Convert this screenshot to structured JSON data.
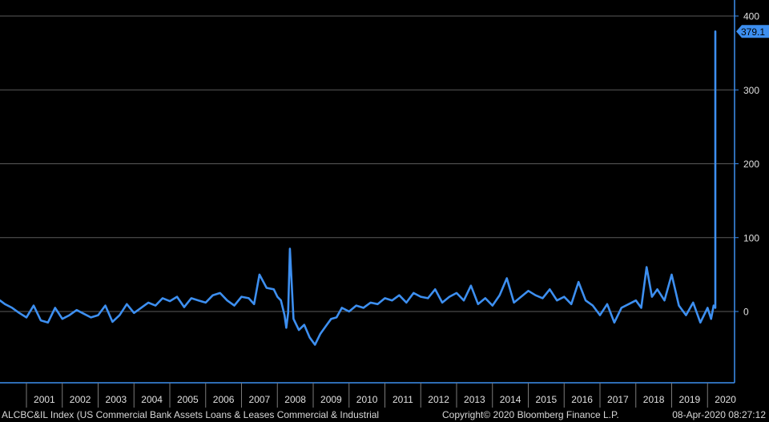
{
  "chart_data": {
    "type": "line",
    "title": "",
    "xlabel": "",
    "ylabel": "",
    "x_tick_labels": [
      "2001",
      "2002",
      "2003",
      "2004",
      "2005",
      "2006",
      "2007",
      "2008",
      "2009",
      "2010",
      "2011",
      "2012",
      "2013",
      "2014",
      "2015",
      "2016",
      "2017",
      "2018",
      "2019",
      "2020"
    ],
    "y_ticks": [
      0,
      100,
      200,
      300,
      400
    ],
    "ylim": [
      -90,
      420
    ],
    "xlim": [
      2000.2,
      2020.75
    ],
    "grid": "horizontal",
    "line_color": "#3d8ff0",
    "last_value_label": "379.1",
    "series": [
      {
        "x": [
          2000.2,
          2000.4,
          2000.6,
          2000.8,
          2001.0,
          2001.2,
          2001.4,
          2001.6,
          2001.8,
          2002.0,
          2002.2,
          2002.4,
          2002.6,
          2002.8,
          2003.0,
          2003.2,
          2003.4,
          2003.6,
          2003.8,
          2004.0,
          2004.2,
          2004.4,
          2004.6,
          2004.8,
          2005.0,
          2005.2,
          2005.4,
          2005.6,
          2005.8,
          2006.0,
          2006.2,
          2006.4,
          2006.6,
          2006.8,
          2007.0,
          2007.2,
          2007.35,
          2007.5,
          2007.7,
          2007.9,
          2008.0,
          2008.1,
          2008.2,
          2008.25,
          2008.3,
          2008.35,
          2008.45,
          2008.6,
          2008.75,
          2008.9,
          2009.05,
          2009.2,
          2009.35,
          2009.5,
          2009.65,
          2009.8,
          2010.0,
          2010.2,
          2010.4,
          2010.6,
          2010.8,
          2011.0,
          2011.2,
          2011.4,
          2011.6,
          2011.8,
          2012.0,
          2012.2,
          2012.4,
          2012.6,
          2012.8,
          2013.0,
          2013.2,
          2013.4,
          2013.6,
          2013.8,
          2014.0,
          2014.2,
          2014.4,
          2014.6,
          2014.8,
          2015.0,
          2015.2,
          2015.4,
          2015.6,
          2015.8,
          2016.0,
          2016.2,
          2016.4,
          2016.6,
          2016.8,
          2017.0,
          2017.2,
          2017.4,
          2017.6,
          2017.8,
          2018.0,
          2018.15,
          2018.3,
          2018.45,
          2018.6,
          2018.8,
          2019.0,
          2019.2,
          2019.4,
          2019.6,
          2019.8,
          2020.0,
          2020.1,
          2020.17,
          2020.22,
          2020.25
        ],
        "values": [
          15,
          10,
          5,
          -2,
          -8,
          8,
          -12,
          -15,
          5,
          -10,
          -5,
          2,
          -3,
          -8,
          -5,
          8,
          -14,
          -5,
          10,
          -2,
          5,
          12,
          8,
          18,
          14,
          20,
          6,
          18,
          15,
          12,
          22,
          25,
          15,
          8,
          20,
          18,
          10,
          50,
          32,
          30,
          20,
          15,
          -5,
          -22,
          -2,
          85,
          -10,
          -25,
          -18,
          -35,
          -45,
          -30,
          -20,
          -10,
          -8,
          5,
          0,
          8,
          5,
          12,
          10,
          18,
          15,
          22,
          12,
          25,
          20,
          18,
          30,
          12,
          20,
          25,
          15,
          35,
          10,
          18,
          8,
          22,
          45,
          12,
          20,
          28,
          22,
          18,
          30,
          15,
          20,
          10,
          40,
          15,
          8,
          -5,
          10,
          -15,
          5,
          10,
          15,
          5,
          60,
          20,
          30,
          15,
          50,
          8,
          -5,
          12,
          -15,
          5,
          -10,
          8,
          5,
          379.1
        ]
      }
    ]
  },
  "footer": {
    "index_text": "ALCBC&IL Index (US Commercial Bank Assets Loans & Leases Commercial & Industrial",
    "copyright": "Copyright© 2020 Bloomberg Finance L.P.",
    "datetime": "08-Apr-2020 08:27:12"
  }
}
